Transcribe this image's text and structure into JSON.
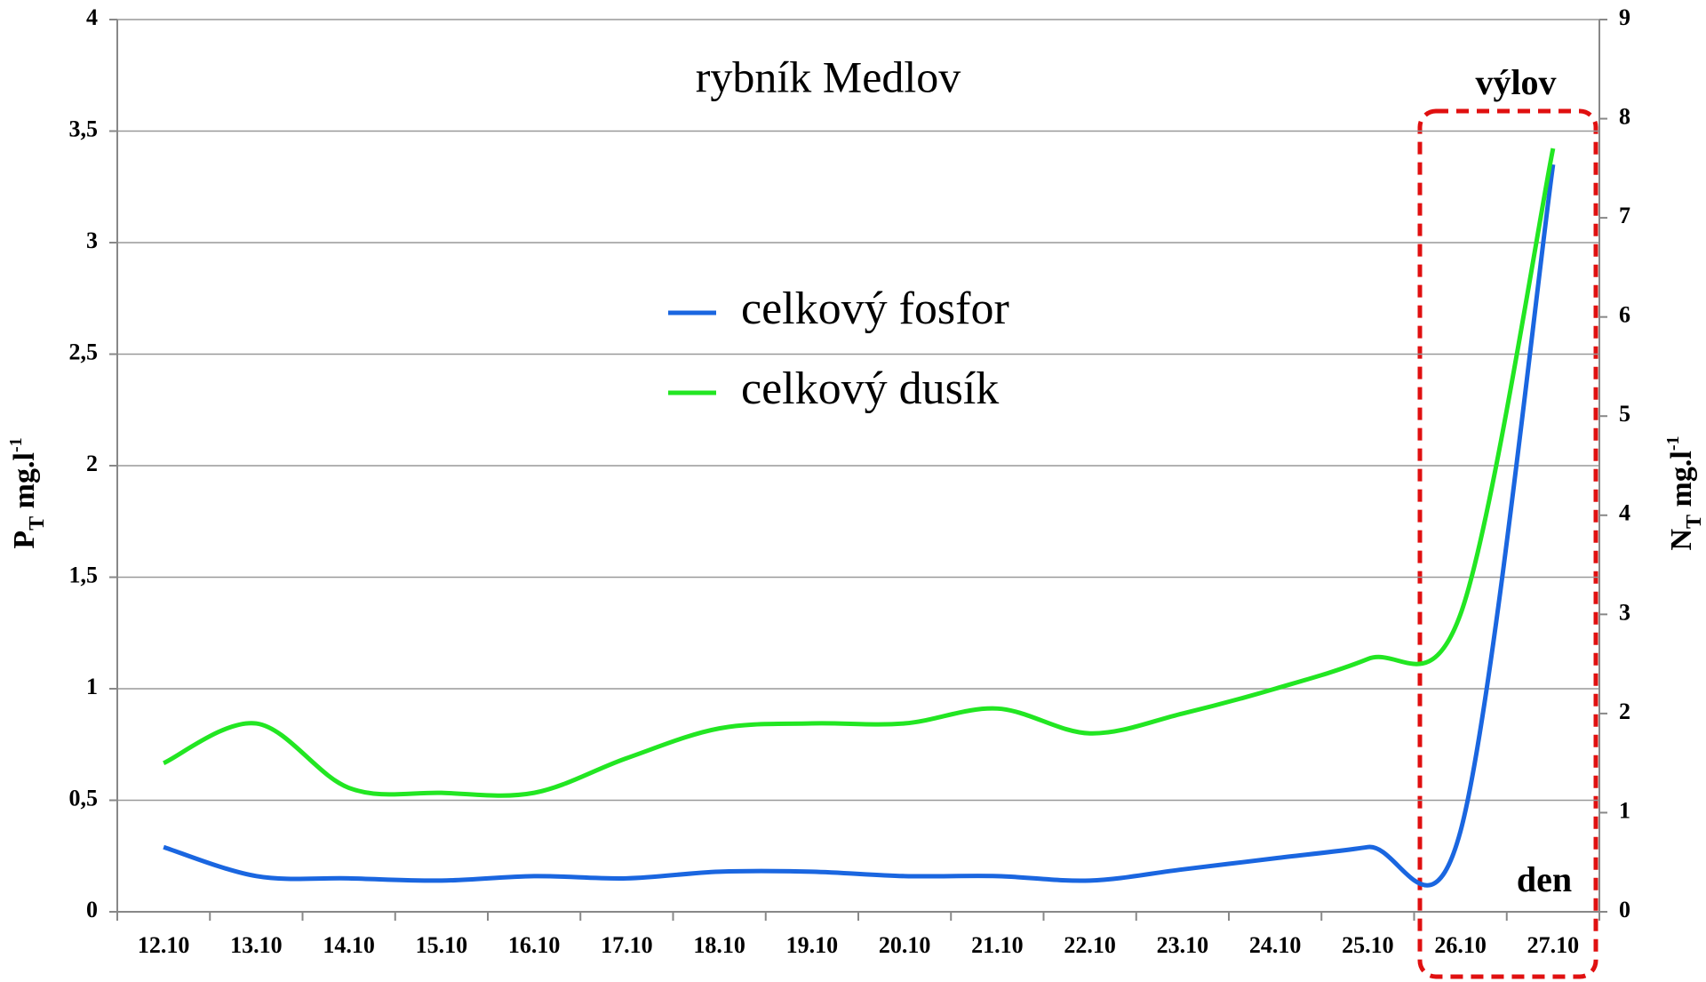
{
  "chart_data": {
    "type": "line",
    "title": "rybník Medlov",
    "annotations": [
      "výlov",
      "den"
    ],
    "ylabel": {
      "base": "P",
      "subscript": "T",
      "unit": " mg.l",
      "superscript": "-1"
    },
    "y2label": {
      "base": "N",
      "subscript": "T",
      "unit": " mg.l",
      "superscript": "-1"
    },
    "categories": [
      "12.10",
      "13.10",
      "14.10",
      "15.10",
      "16.10",
      "17.10",
      "18.10",
      "19.10",
      "20.10",
      "21.10",
      "22.10",
      "23.10",
      "24.10",
      "25.10",
      "26.10",
      "27.10"
    ],
    "series": [
      {
        "name": "celkový fosfor",
        "color": "#1a66e0",
        "axis": "y",
        "values": [
          0.29,
          0.16,
          0.15,
          0.14,
          0.16,
          0.15,
          0.18,
          0.18,
          0.16,
          0.16,
          0.14,
          0.19,
          0.24,
          0.29,
          0.36,
          3.35
        ]
      },
      {
        "name": "celkový dusík",
        "color": "#22e622",
        "axis": "y2",
        "values": [
          1.5,
          1.9,
          1.25,
          1.2,
          1.2,
          1.55,
          1.85,
          1.9,
          1.9,
          2.05,
          1.8,
          2.0,
          2.25,
          2.55,
          3.0,
          7.7
        ]
      }
    ],
    "ylim": [
      0,
      4
    ],
    "yticks": [
      0,
      {
        "value": 0.5,
        "label": "0,5"
      },
      1,
      {
        "value": 1.5,
        "label": "1,5"
      },
      2,
      {
        "value": 2.5,
        "label": "2,5"
      },
      3,
      {
        "value": 3.5,
        "label": "3,5"
      },
      4
    ],
    "y2lim": [
      0,
      9
    ],
    "y2ticks": [
      0,
      1,
      2,
      3,
      4,
      5,
      6,
      7,
      8,
      9
    ],
    "grid": true
  }
}
